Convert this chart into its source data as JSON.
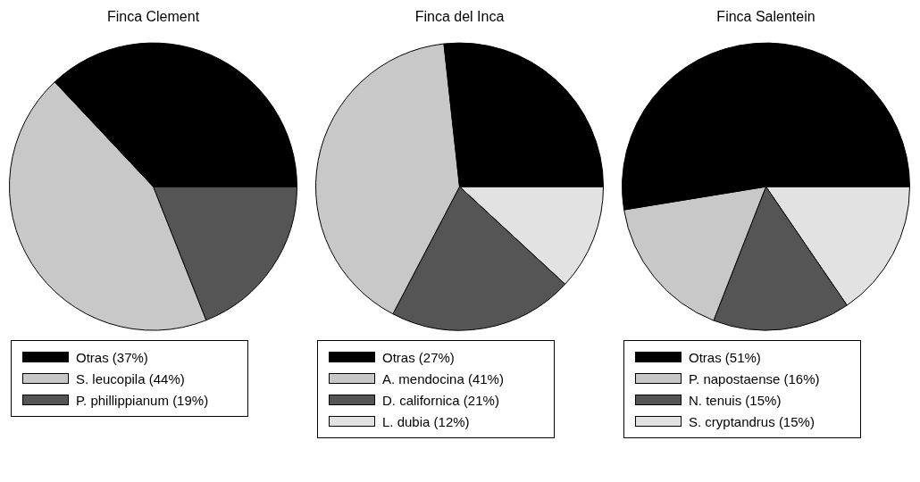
{
  "chart_data": [
    {
      "type": "pie",
      "title": "Finca Clement",
      "categories": [
        "Otras (37%)",
        "S. leucopila (44%)",
        "P. phillippianum (19%)"
      ],
      "values": [
        37,
        44,
        19
      ],
      "colors": [
        "#000000",
        "#c8c8c8",
        "#555555"
      ],
      "legend": "bottom"
    },
    {
      "type": "pie",
      "title": "Finca del Inca",
      "categories": [
        "Otras (27%)",
        "A. mendocina (41%)",
        "D. californica (21%)",
        "L. dubia (12%)"
      ],
      "values": [
        27,
        41,
        21,
        12
      ],
      "colors": [
        "#000000",
        "#c8c8c8",
        "#555555",
        "#e2e2e2"
      ],
      "legend": "bottom"
    },
    {
      "type": "pie",
      "title": "Finca Salentein",
      "categories": [
        "Otras (51%)",
        "P. napostaense (16%)",
        "N. tenuis (15%)",
        "S. cryptandrus (15%)"
      ],
      "values": [
        51,
        16,
        15,
        15
      ],
      "colors": [
        "#000000",
        "#c8c8c8",
        "#555555",
        "#e2e2e2"
      ],
      "legend": "bottom"
    }
  ]
}
